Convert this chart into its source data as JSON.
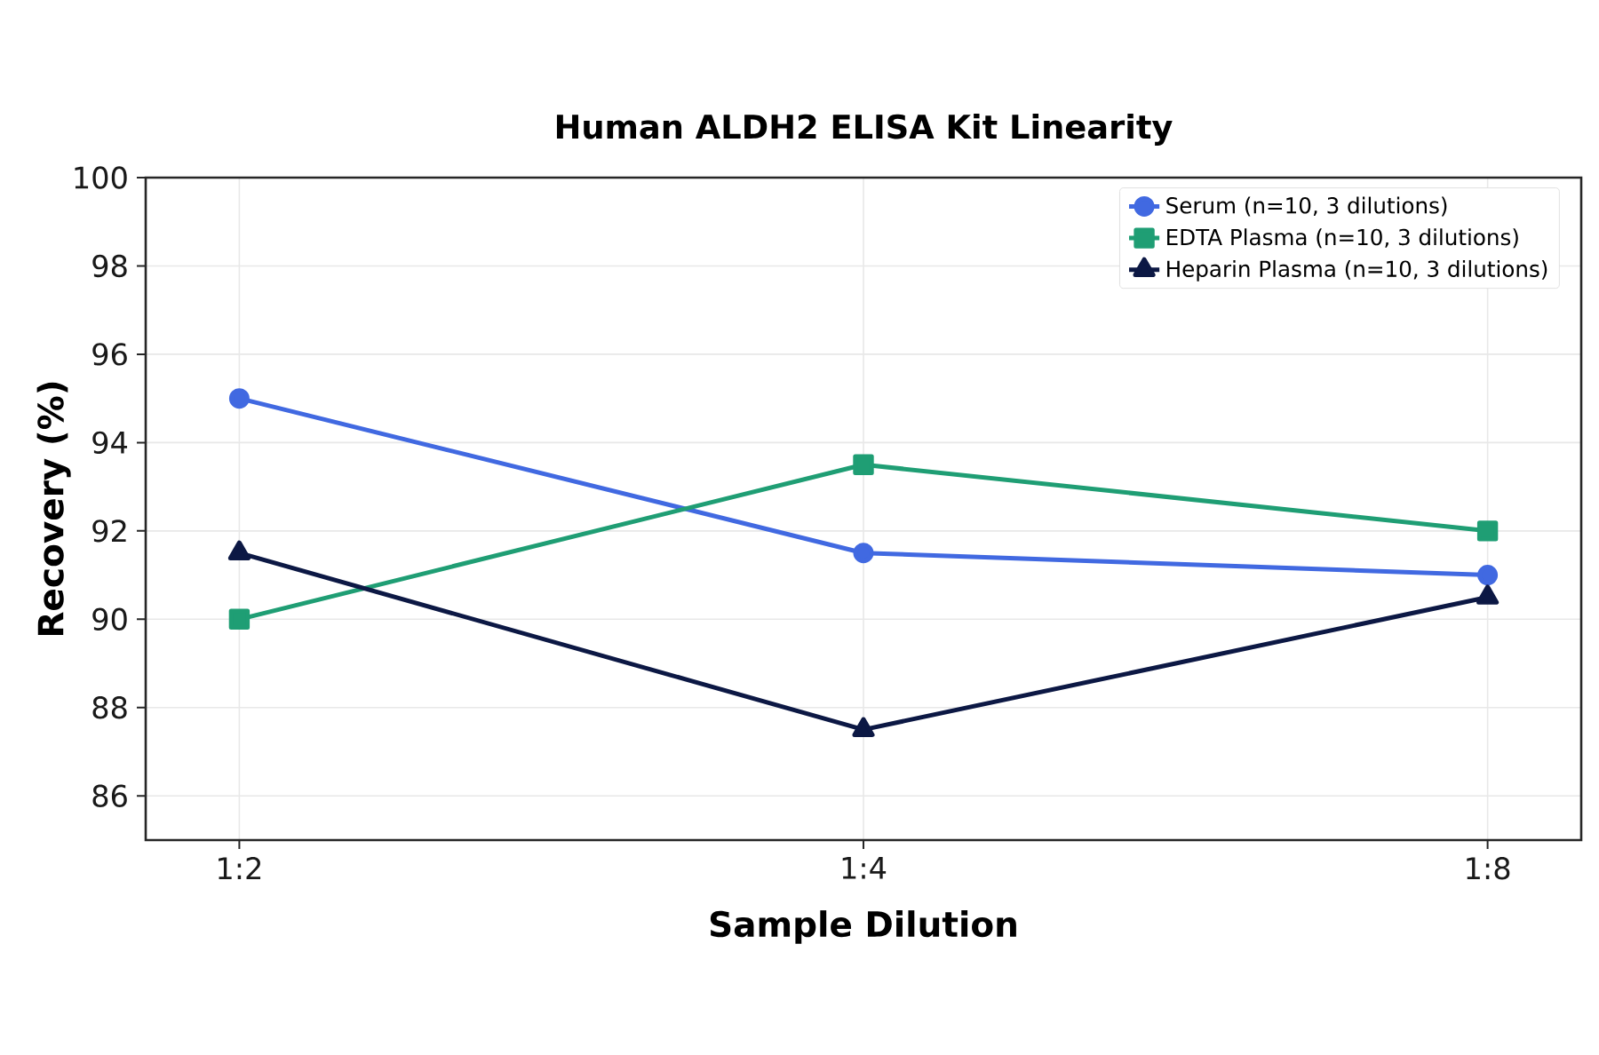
{
  "chart_data": {
    "type": "line",
    "title": "Human ALDH2 ELISA Kit Linearity",
    "xlabel": "Sample Dilution",
    "ylabel": "Recovery (%)",
    "categories": [
      "1:2",
      "1:4",
      "1:8"
    ],
    "series": [
      {
        "name": "Serum (n=10, 3 dilutions)",
        "color": "#4169e1",
        "marker": "circle",
        "values": [
          95,
          91.5,
          91
        ]
      },
      {
        "name": "EDTA Plasma (n=10, 3 dilutions)",
        "color": "#1f9e74",
        "marker": "square",
        "values": [
          90,
          93.5,
          92
        ]
      },
      {
        "name": "Heparin Plasma (n=10, 3 dilutions)",
        "color": "#0c1844",
        "marker": "triangle",
        "values": [
          91.5,
          87.5,
          90.5
        ]
      }
    ],
    "ylim": [
      85,
      100
    ],
    "yticks": [
      86,
      88,
      90,
      92,
      94,
      96,
      98,
      100
    ],
    "grid": true,
    "legend": "top right"
  }
}
